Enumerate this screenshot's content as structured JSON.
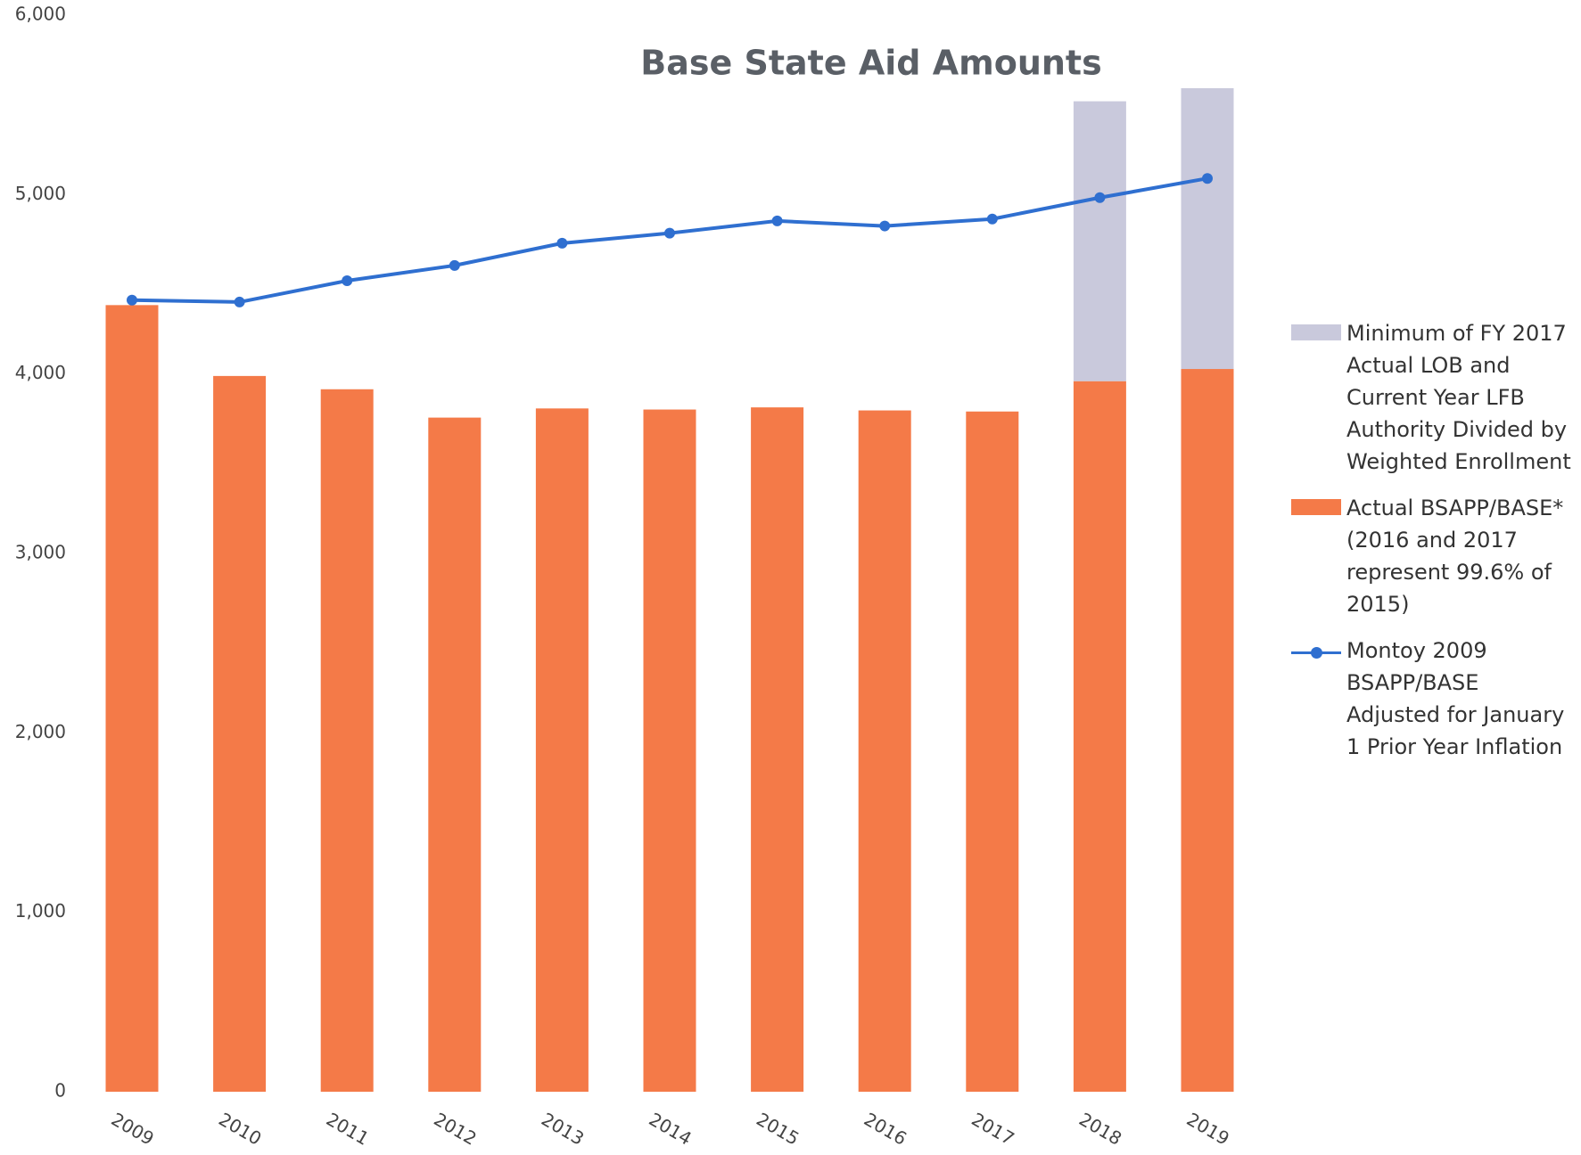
{
  "chart_data": {
    "type": "bar",
    "title": "Base State Aid Amounts",
    "categories": [
      "2009",
      "2010",
      "2011",
      "2012",
      "2013",
      "2014",
      "2015",
      "2016",
      "2017",
      "2018",
      "2019"
    ],
    "series": [
      {
        "name": "Minimum of FY 2017 Actual LOB and Current Year LFB Authority Divided by Weighted Enrollment",
        "type": "bar",
        "color": "#c9c9dc",
        "values": [
          null,
          null,
          null,
          null,
          null,
          null,
          null,
          null,
          null,
          1560,
          1565
        ]
      },
      {
        "name": "Actual BSAPP/BASE* (2016 and 2017 represent 99.6% of 2015)",
        "type": "bar",
        "color": "#f47a48",
        "values": [
          4384,
          3989,
          3915,
          3757,
          3808,
          3802,
          3814,
          3797,
          3791,
          3960,
          4028
        ]
      },
      {
        "name": "Montoy 2009 BSAPP/BASE Adjusted for January 1 Prior Year Inflation",
        "type": "line",
        "color": "#2f6fd0",
        "values": [
          4412,
          4401,
          4520,
          4605,
          4729,
          4785,
          4853,
          4825,
          4864,
          4983,
          5090
        ]
      }
    ],
    "ylim": [
      0,
      6000
    ],
    "yticks": [
      0,
      {
        "value": 1000,
        "label": "1,000"
      },
      {
        "value": 2000,
        "label": "2,000"
      },
      {
        "value": 3000,
        "label": "3,000"
      },
      {
        "value": 4000,
        "label": "4,000"
      },
      {
        "value": 5000,
        "label": "5,000"
      },
      {
        "value": 6000,
        "label": "6,000"
      }
    ],
    "grid": false
  }
}
